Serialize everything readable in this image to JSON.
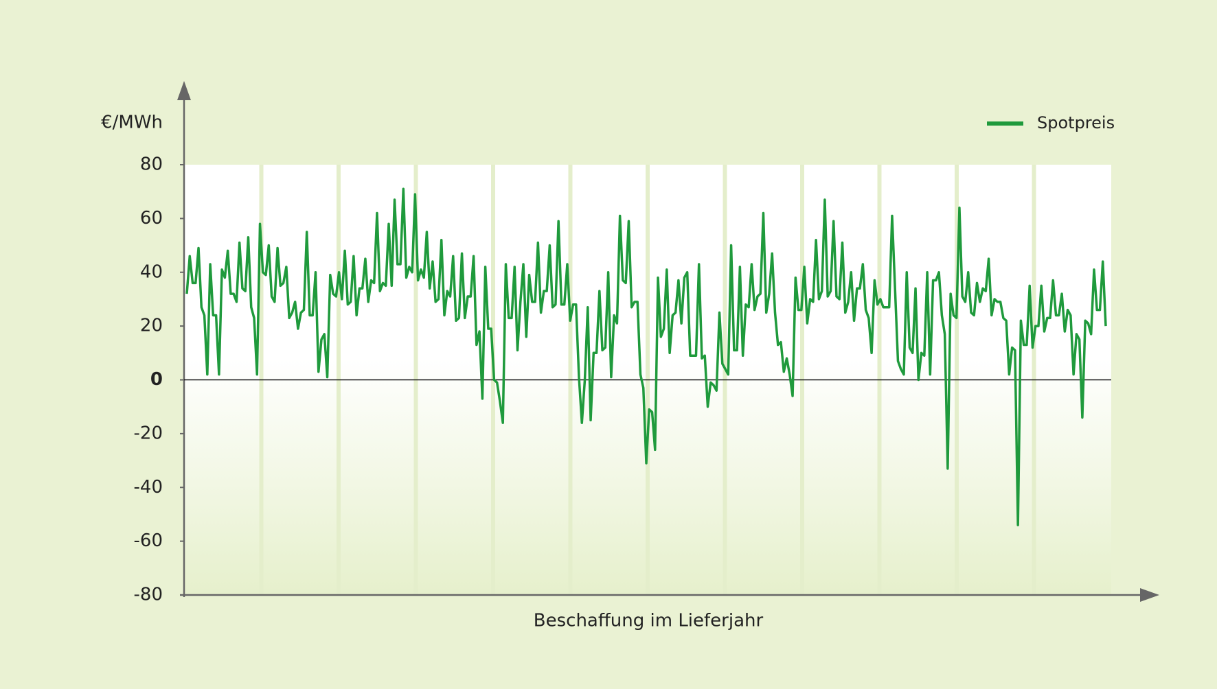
{
  "chart_data": {
    "type": "line",
    "ylabel": "€/MWh",
    "xlabel": "Beschaffung im Lieferjahr",
    "ylim": [
      -80,
      80
    ],
    "yticks": [
      -80,
      -60,
      -40,
      -20,
      0,
      20,
      40,
      60,
      80
    ],
    "legend": "top-right",
    "series": [
      {
        "name": "Spotpreis",
        "color": "#1f9a3c",
        "values": [
          32,
          46,
          36,
          36,
          49,
          27,
          24,
          2,
          43,
          24,
          24,
          2,
          41,
          38,
          48,
          32,
          32,
          29,
          51,
          34,
          33,
          53,
          27,
          23,
          2,
          58,
          40,
          39,
          50,
          31,
          29,
          49,
          35,
          36,
          42,
          23,
          25,
          29,
          19,
          25,
          26,
          55,
          24,
          24,
          40,
          3,
          15,
          17,
          1,
          39,
          32,
          31,
          40,
          30,
          48,
          28,
          29,
          46,
          24,
          34,
          34,
          45,
          29,
          37,
          36,
          62,
          33,
          36,
          35,
          58,
          35,
          67,
          43,
          43,
          71,
          38,
          42,
          40,
          69,
          37,
          41,
          38,
          55,
          34,
          44,
          29,
          30,
          52,
          24,
          33,
          31,
          46,
          22,
          23,
          47,
          23,
          31,
          31,
          46,
          13,
          18,
          -7,
          42,
          19,
          19,
          0,
          -1,
          -8,
          -16,
          43,
          23,
          23,
          42,
          11,
          29,
          43,
          16,
          39,
          29,
          29,
          51,
          25,
          33,
          33,
          50,
          27,
          28,
          59,
          28,
          28,
          43,
          22,
          28,
          28,
          1,
          -16,
          0,
          27,
          -15,
          10,
          10,
          33,
          11,
          12,
          40,
          1,
          24,
          21,
          61,
          37,
          36,
          59,
          27,
          29,
          29,
          2,
          -3,
          -31,
          -11,
          -12,
          -26,
          38,
          16,
          19,
          41,
          10,
          24,
          25,
          37,
          21,
          38,
          40,
          9,
          9,
          9,
          43,
          8,
          9,
          -10,
          -1,
          -2,
          -4,
          25,
          6,
          4,
          2,
          50,
          11,
          11,
          42,
          9,
          28,
          27,
          43,
          26,
          31,
          32,
          62,
          25,
          32,
          47,
          25,
          13,
          14,
          3,
          8,
          2,
          -6,
          38,
          26,
          26,
          42,
          21,
          30,
          29,
          52,
          30,
          33,
          67,
          31,
          33,
          59,
          31,
          30,
          51,
          25,
          29,
          40,
          22,
          34,
          34,
          43,
          26,
          23,
          10,
          37,
          28,
          30,
          27,
          27,
          27,
          61,
          34,
          7,
          4,
          2,
          40,
          12,
          10,
          34,
          0,
          10,
          9,
          40,
          2,
          37,
          37,
          40,
          24,
          17,
          -33,
          32,
          24,
          23,
          64,
          31,
          29,
          40,
          25,
          24,
          36,
          29,
          34,
          33,
          45,
          24,
          30,
          29,
          29,
          23,
          22,
          2,
          12,
          11,
          -54,
          22,
          13,
          13,
          35,
          12,
          20,
          20,
          35,
          18,
          23,
          23,
          37,
          24,
          24,
          32,
          18,
          26,
          24,
          2,
          17,
          15,
          -14,
          22,
          21,
          17,
          41,
          26,
          26,
          44,
          20
        ]
      }
    ]
  }
}
